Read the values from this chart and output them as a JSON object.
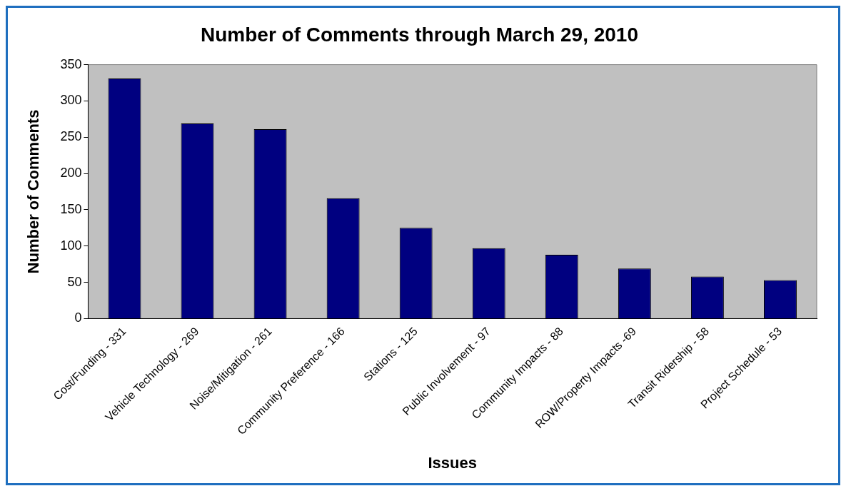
{
  "chart_data": {
    "type": "bar",
    "title": "Number of Comments through March 29, 2010",
    "xlabel": "Issues",
    "ylabel": "Number of Comments",
    "categories": [
      "Cost/Funding - 331",
      "Vehicle Technology - 269",
      "Noise/Mitigation - 261",
      "Community Preference - 166",
      "Stations - 125",
      "Public Involvement - 97",
      "Community Impacts - 88",
      "ROW/Property Impacts -69",
      "Transit Ridership - 58",
      "Project Schedule - 53"
    ],
    "values": [
      331,
      269,
      261,
      166,
      125,
      97,
      88,
      69,
      58,
      53
    ],
    "color": "#000080",
    "ylim": [
      0,
      350
    ],
    "yticks": [
      0,
      50,
      100,
      150,
      200,
      250,
      300,
      350
    ],
    "grid": false,
    "legend": false
  }
}
